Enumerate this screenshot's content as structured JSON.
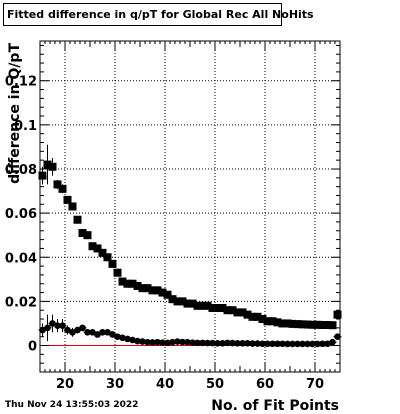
{
  "title": "Fitted difference in q/pT for Global Rec All NoHits",
  "timestamp": "Thu Nov 24 13:55:03 2022",
  "chart_data": {
    "type": "scatter",
    "xlabel": "No. of Fit Points",
    "ylabel": "difference in Q/pT",
    "xlim": [
      15,
      75
    ],
    "ylim": [
      -0.012,
      0.138
    ],
    "x_ticks": [
      20,
      30,
      40,
      50,
      60,
      70
    ],
    "y_ticks": [
      0,
      0.02,
      0.04,
      0.06,
      0.08,
      0.1,
      0.12
    ],
    "y_tick_labels": [
      "0",
      "0.02",
      "0.04",
      "0.06",
      "0.08",
      "0.1",
      "0.12"
    ],
    "grid": true,
    "reference_line": {
      "y": 0,
      "color": "#e00000"
    },
    "series": [
      {
        "marker": "square",
        "color": "#000000",
        "x": [
          15.5,
          16.5,
          17.5,
          18.5,
          19.5,
          20.5,
          21.5,
          22.5,
          23.5,
          24.5,
          25.5,
          26.5,
          27.5,
          28.5,
          29.5,
          30.5,
          31.5,
          32.5,
          33.5,
          34.5,
          35.5,
          36.5,
          37.5,
          38.5,
          39.5,
          40.5,
          41.5,
          42.5,
          43.5,
          44.5,
          45.5,
          46.5,
          47.5,
          48.5,
          49.5,
          50.5,
          51.5,
          52.5,
          53.5,
          54.5,
          55.5,
          56.5,
          57.5,
          58.5,
          59.5,
          60.5,
          61.5,
          62.5,
          63.5,
          64.5,
          65.5,
          66.5,
          67.5,
          68.5,
          69.5,
          70.5,
          71.5,
          72.5,
          73.5,
          74.5
        ],
        "y": [
          0.077,
          0.082,
          0.081,
          0.073,
          0.071,
          0.066,
          0.063,
          0.057,
          0.051,
          0.05,
          0.045,
          0.044,
          0.042,
          0.04,
          0.037,
          0.033,
          0.029,
          0.028,
          0.028,
          0.027,
          0.026,
          0.026,
          0.025,
          0.025,
          0.024,
          0.023,
          0.021,
          0.02,
          0.02,
          0.019,
          0.019,
          0.018,
          0.018,
          0.018,
          0.017,
          0.017,
          0.017,
          0.016,
          0.016,
          0.015,
          0.015,
          0.014,
          0.013,
          0.013,
          0.012,
          0.011,
          0.011,
          0.0105,
          0.01,
          0.01,
          0.0098,
          0.0097,
          0.0096,
          0.0095,
          0.0094,
          0.0094,
          0.0093,
          0.0093,
          0.0092,
          0.014
        ],
        "err": [
          0.004,
          0.009,
          0.004,
          0.002,
          0.002,
          0.0015,
          0.0012,
          0.001,
          0.001,
          0.001,
          0.001,
          0.001,
          0.001,
          0.001,
          0.001,
          0.001,
          0.0008,
          0.0008,
          0.0008,
          0.0008,
          0.0008,
          0.0008,
          0.0008,
          0.0008,
          0.0008,
          0.0008,
          0.0008,
          0.0008,
          0.0008,
          0.0008,
          0.0008,
          0.0008,
          0.0008,
          0.0008,
          0.0008,
          0.0008,
          0.0008,
          0.0008,
          0.0008,
          0.0008,
          0.0008,
          0.0008,
          0.0008,
          0.0008,
          0.0008,
          0.0008,
          0.0008,
          0.0008,
          0.0008,
          0.0008,
          0.0008,
          0.0008,
          0.0008,
          0.0008,
          0.0008,
          0.0008,
          0.0008,
          0.0008,
          0.0008,
          0.0008
        ]
      },
      {
        "marker": "circle",
        "color": "#000000",
        "x": [
          15.5,
          16.5,
          17.5,
          18.5,
          19.5,
          20.5,
          21.5,
          22.5,
          23.5,
          24.5,
          25.5,
          26.5,
          27.5,
          28.5,
          29.5,
          30.5,
          31.5,
          32.5,
          33.5,
          34.5,
          35.5,
          36.5,
          37.5,
          38.5,
          39.5,
          40.5,
          41.5,
          42.5,
          43.5,
          44.5,
          45.5,
          46.5,
          47.5,
          48.5,
          49.5,
          50.5,
          51.5,
          52.5,
          53.5,
          54.5,
          55.5,
          56.5,
          57.5,
          58.5,
          59.5,
          60.5,
          61.5,
          62.5,
          63.5,
          64.5,
          65.5,
          66.5,
          67.5,
          68.5,
          69.5,
          70.5,
          71.5,
          72.5,
          73.5,
          74.5
        ],
        "y": [
          0.007,
          0.008,
          0.01,
          0.009,
          0.009,
          0.007,
          0.006,
          0.007,
          0.008,
          0.006,
          0.006,
          0.005,
          0.006,
          0.006,
          0.005,
          0.004,
          0.0035,
          0.003,
          0.0025,
          0.002,
          0.0018,
          0.0015,
          0.0014,
          0.0015,
          0.0013,
          0.0012,
          0.0015,
          0.0018,
          0.0016,
          0.0015,
          0.0013,
          0.0012,
          0.0012,
          0.0011,
          0.0011,
          0.001,
          0.001,
          0.0012,
          0.0011,
          0.001,
          0.001,
          0.001,
          0.0009,
          0.0009,
          0.0008,
          0.0008,
          0.0008,
          0.0008,
          0.0008,
          0.0007,
          0.0007,
          0.0007,
          0.0007,
          0.0007,
          0.0007,
          0.0007,
          0.0008,
          0.0008,
          0.0015,
          0.004
        ],
        "err": [
          0.003,
          0.006,
          0.004,
          0.003,
          0.003,
          0.002,
          0.002,
          0.0015,
          0.0015,
          0.001,
          0.001,
          0.001,
          0.001,
          0.001,
          0.001,
          0.0008,
          0.0008,
          0.0008,
          0.0008,
          0.0008,
          0.0008,
          0.0008,
          0.0008,
          0.0008,
          0.0008,
          0.0008,
          0.0008,
          0.0008,
          0.0008,
          0.0008,
          0.0008,
          0.0008,
          0.0008,
          0.0008,
          0.0008,
          0.0008,
          0.0008,
          0.0008,
          0.0008,
          0.0008,
          0.0008,
          0.0008,
          0.0008,
          0.0008,
          0.0008,
          0.0008,
          0.0008,
          0.0008,
          0.0008,
          0.0008,
          0.0008,
          0.0008,
          0.0008,
          0.0008,
          0.0008,
          0.0008,
          0.0008,
          0.0008,
          0.0008,
          0.0008
        ]
      }
    ]
  }
}
